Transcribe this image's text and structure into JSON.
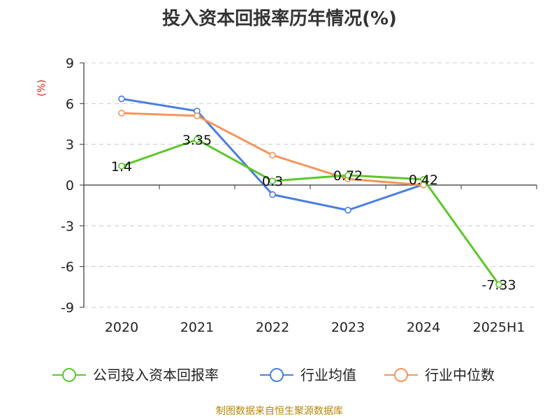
{
  "chart_data": {
    "type": "line",
    "title": "投入资本回报率历年情况(%)",
    "ylabel": "(%)",
    "categories": [
      "2020",
      "2021",
      "2022",
      "2023",
      "2024",
      "2025H1"
    ],
    "ylim": [
      -9,
      9
    ],
    "yticks": [
      9,
      6,
      3,
      0,
      -3,
      -6,
      -9
    ],
    "grid": true,
    "legend_position": "bottom",
    "series": [
      {
        "name": "公司投入资本回报率",
        "color": "#5cc72a",
        "values": [
          1.4,
          3.35,
          0.3,
          0.72,
          0.42,
          -7.33
        ],
        "labels": [
          "1.4",
          "3.35",
          "0.3",
          "0.72",
          "0.42",
          "-7.33"
        ]
      },
      {
        "name": "行业均值",
        "color": "#4a7ee0",
        "values": [
          6.35,
          5.45,
          -0.7,
          -1.85,
          0.05,
          null
        ]
      },
      {
        "name": "行业中位数",
        "color": "#f5955a",
        "values": [
          5.3,
          5.1,
          2.2,
          0.45,
          0.0,
          null
        ]
      }
    ]
  },
  "source": "制图数据来自恒生聚源数据库"
}
